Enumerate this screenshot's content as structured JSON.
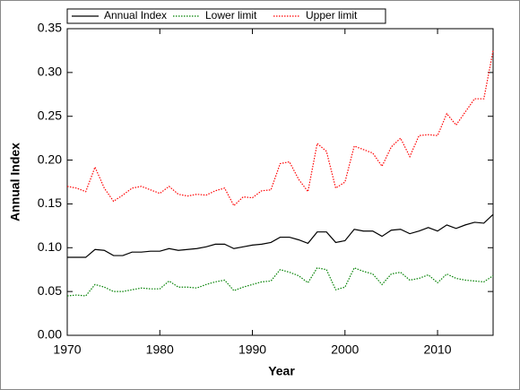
{
  "chart_data": {
    "type": "line",
    "x_label": "Year",
    "y_label": "Annual Index",
    "x": [
      1970,
      1971,
      1972,
      1973,
      1974,
      1975,
      1976,
      1977,
      1978,
      1979,
      1980,
      1981,
      1982,
      1983,
      1984,
      1985,
      1986,
      1987,
      1988,
      1989,
      1990,
      1991,
      1992,
      1993,
      1994,
      1995,
      1996,
      1997,
      1998,
      1999,
      2000,
      2001,
      2002,
      2003,
      2004,
      2005,
      2006,
      2007,
      2008,
      2009,
      2010,
      2011,
      2012,
      2013,
      2014,
      2015,
      2016
    ],
    "series": [
      {
        "name": "Annual Index",
        "color": "#000000",
        "dash": "solid",
        "values": [
          0.089,
          0.089,
          0.089,
          0.098,
          0.097,
          0.091,
          0.091,
          0.095,
          0.095,
          0.096,
          0.096,
          0.099,
          0.097,
          0.098,
          0.099,
          0.101,
          0.104,
          0.104,
          0.099,
          0.101,
          0.103,
          0.104,
          0.106,
          0.112,
          0.112,
          0.109,
          0.105,
          0.118,
          0.118,
          0.106,
          0.108,
          0.121,
          0.119,
          0.119,
          0.113,
          0.12,
          0.121,
          0.116,
          0.119,
          0.123,
          0.119,
          0.126,
          0.122,
          0.126,
          0.129,
          0.128,
          0.138
        ]
      },
      {
        "name": "Lower limit",
        "color": "#008000",
        "dash": "dotted",
        "values": [
          0.045,
          0.046,
          0.045,
          0.058,
          0.055,
          0.05,
          0.05,
          0.052,
          0.054,
          0.053,
          0.053,
          0.062,
          0.055,
          0.055,
          0.054,
          0.058,
          0.061,
          0.063,
          0.051,
          0.055,
          0.058,
          0.061,
          0.062,
          0.075,
          0.072,
          0.068,
          0.06,
          0.077,
          0.075,
          0.052,
          0.055,
          0.077,
          0.073,
          0.07,
          0.058,
          0.07,
          0.072,
          0.063,
          0.065,
          0.069,
          0.06,
          0.07,
          0.065,
          0.063,
          0.062,
          0.061,
          0.068
        ]
      },
      {
        "name": "Upper limit",
        "color": "#ff0000",
        "dash": "dotted",
        "values": [
          0.17,
          0.168,
          0.164,
          0.192,
          0.168,
          0.153,
          0.16,
          0.168,
          0.17,
          0.166,
          0.162,
          0.17,
          0.161,
          0.159,
          0.161,
          0.16,
          0.165,
          0.168,
          0.148,
          0.158,
          0.157,
          0.165,
          0.166,
          0.196,
          0.198,
          0.178,
          0.164,
          0.219,
          0.21,
          0.168,
          0.175,
          0.216,
          0.212,
          0.208,
          0.193,
          0.215,
          0.225,
          0.204,
          0.228,
          0.229,
          0.228,
          0.253,
          0.24,
          0.255,
          0.27,
          0.27,
          0.325
        ]
      }
    ],
    "xlim": [
      1970,
      2016
    ],
    "xticks": [
      1970,
      1980,
      1990,
      2000,
      2010
    ],
    "ylim": [
      0,
      0.35
    ],
    "yticks": [
      {
        "value": 0,
        "label": "0.00"
      },
      0.05,
      {
        "value": 0.1,
        "label": "0.10"
      },
      0.15,
      {
        "value": 0.2,
        "label": "0.20"
      },
      0.25,
      {
        "value": 0.3,
        "label": "0.30"
      },
      0.35
    ],
    "grid": false
  }
}
